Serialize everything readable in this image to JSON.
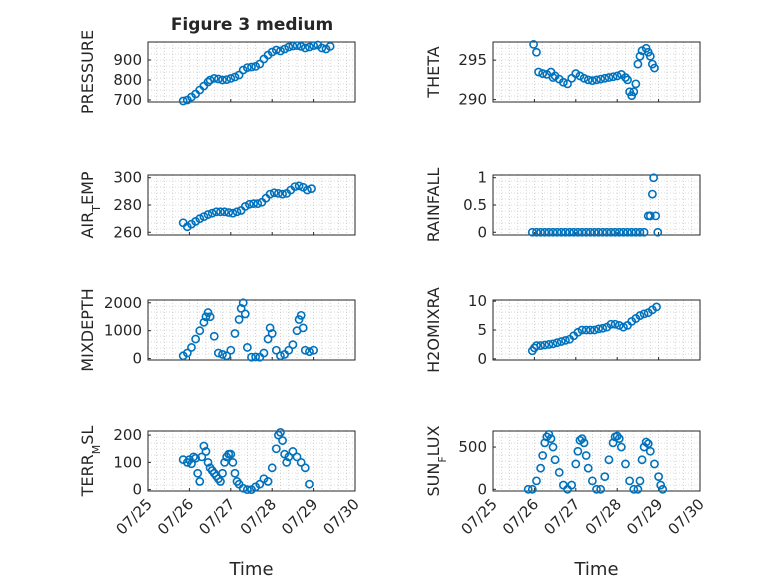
{
  "figure": {
    "title": "Figure 3 medium",
    "xlabel": "Time",
    "x_tick_labels": [
      "07/25",
      "07/26",
      "07/27",
      "07/28",
      "07/29",
      "07/30"
    ]
  },
  "colors": {
    "marker": "#0072BD",
    "axis": "#262626",
    "grid": "#b8b8b8"
  },
  "chart_data": [
    {
      "type": "scatter",
      "ylabel": "PRESSURE",
      "xlim": [
        0,
        5
      ],
      "ylim": [
        690,
        990
      ],
      "yticks": [
        700,
        800,
        900
      ],
      "grid": true,
      "points": [
        [
          0.85,
          695
        ],
        [
          0.95,
          700
        ],
        [
          1.05,
          715
        ],
        [
          1.15,
          730
        ],
        [
          1.25,
          750
        ],
        [
          1.35,
          770
        ],
        [
          1.45,
          790
        ],
        [
          1.5,
          800
        ],
        [
          1.6,
          808
        ],
        [
          1.7,
          805
        ],
        [
          1.8,
          800
        ],
        [
          1.9,
          802
        ],
        [
          2.0,
          808
        ],
        [
          2.1,
          815
        ],
        [
          2.2,
          825
        ],
        [
          2.3,
          850
        ],
        [
          2.4,
          862
        ],
        [
          2.5,
          865
        ],
        [
          2.6,
          868
        ],
        [
          2.7,
          880
        ],
        [
          2.8,
          905
        ],
        [
          2.9,
          925
        ],
        [
          3.0,
          940
        ],
        [
          3.1,
          950
        ],
        [
          3.2,
          945
        ],
        [
          3.3,
          955
        ],
        [
          3.4,
          965
        ],
        [
          3.5,
          970
        ],
        [
          3.6,
          972
        ],
        [
          3.7,
          968
        ],
        [
          3.8,
          960
        ],
        [
          3.9,
          965
        ],
        [
          4.0,
          972
        ],
        [
          4.1,
          975
        ],
        [
          4.2,
          960
        ],
        [
          4.3,
          955
        ],
        [
          4.4,
          968
        ]
      ]
    },
    {
      "type": "scatter",
      "ylabel": "THETA",
      "xlim": [
        0,
        5
      ],
      "ylim": [
        289.7,
        297.3
      ],
      "yticks": [
        290,
        295
      ],
      "grid": true,
      "points": [
        [
          0.98,
          297.0
        ],
        [
          1.05,
          296.0
        ],
        [
          1.1,
          293.5
        ],
        [
          1.2,
          293.3
        ],
        [
          1.3,
          293.2
        ],
        [
          1.4,
          293.5
        ],
        [
          1.45,
          292.8
        ],
        [
          1.5,
          293.0
        ],
        [
          1.6,
          292.6
        ],
        [
          1.7,
          292.2
        ],
        [
          1.8,
          292.0
        ],
        [
          1.9,
          292.7
        ],
        [
          2.0,
          293.3
        ],
        [
          2.1,
          293.0
        ],
        [
          2.2,
          292.7
        ],
        [
          2.3,
          292.5
        ],
        [
          2.4,
          292.4
        ],
        [
          2.5,
          292.5
        ],
        [
          2.6,
          292.6
        ],
        [
          2.7,
          292.7
        ],
        [
          2.8,
          292.8
        ],
        [
          2.9,
          292.9
        ],
        [
          3.0,
          293.0
        ],
        [
          3.1,
          293.2
        ],
        [
          3.2,
          292.8
        ],
        [
          3.25,
          292.5
        ],
        [
          3.3,
          291.0
        ],
        [
          3.35,
          290.5
        ],
        [
          3.4,
          291.0
        ],
        [
          3.45,
          292.0
        ],
        [
          3.5,
          294.5
        ],
        [
          3.55,
          295.5
        ],
        [
          3.6,
          296.2
        ],
        [
          3.7,
          296.5
        ],
        [
          3.75,
          296.0
        ],
        [
          3.8,
          295.5
        ],
        [
          3.85,
          294.5
        ],
        [
          3.9,
          294.0
        ]
      ]
    },
    {
      "type": "scatter",
      "ylabel": "AIR_TEMP",
      "xlim": [
        0,
        5
      ],
      "ylim": [
        258,
        302
      ],
      "yticks": [
        260,
        280,
        300
      ],
      "grid": true,
      "points": [
        [
          0.85,
          267
        ],
        [
          0.95,
          264
        ],
        [
          1.05,
          266
        ],
        [
          1.15,
          268
        ],
        [
          1.25,
          270
        ],
        [
          1.35,
          271.5
        ],
        [
          1.45,
          273
        ],
        [
          1.55,
          274
        ],
        [
          1.65,
          275
        ],
        [
          1.75,
          275
        ],
        [
          1.85,
          275
        ],
        [
          1.95,
          274.5
        ],
        [
          2.05,
          274
        ],
        [
          2.15,
          275
        ],
        [
          2.25,
          276
        ],
        [
          2.35,
          279
        ],
        [
          2.45,
          280.5
        ],
        [
          2.55,
          281
        ],
        [
          2.65,
          281
        ],
        [
          2.75,
          282
        ],
        [
          2.85,
          285
        ],
        [
          2.95,
          288
        ],
        [
          3.05,
          289
        ],
        [
          3.15,
          288.5
        ],
        [
          3.25,
          288
        ],
        [
          3.35,
          288.5
        ],
        [
          3.45,
          291
        ],
        [
          3.55,
          293.5
        ],
        [
          3.65,
          294
        ],
        [
          3.75,
          293
        ],
        [
          3.85,
          291
        ],
        [
          3.95,
          292
        ]
      ]
    },
    {
      "type": "scatter",
      "ylabel": "RAINFALL",
      "xlim": [
        0,
        5
      ],
      "ylim": [
        -0.05,
        1.05
      ],
      "yticks": [
        0,
        0.5,
        1
      ],
      "grid": true,
      "points": [
        [
          0.95,
          0
        ],
        [
          1.05,
          0
        ],
        [
          1.15,
          0
        ],
        [
          1.25,
          0
        ],
        [
          1.35,
          0
        ],
        [
          1.45,
          0
        ],
        [
          1.55,
          0
        ],
        [
          1.65,
          0
        ],
        [
          1.75,
          0
        ],
        [
          1.85,
          0
        ],
        [
          1.95,
          0
        ],
        [
          2.05,
          0
        ],
        [
          2.15,
          0
        ],
        [
          2.25,
          0
        ],
        [
          2.35,
          0
        ],
        [
          2.45,
          0
        ],
        [
          2.55,
          0
        ],
        [
          2.65,
          0
        ],
        [
          2.75,
          0
        ],
        [
          2.85,
          0
        ],
        [
          2.95,
          0
        ],
        [
          3.05,
          0
        ],
        [
          3.15,
          0
        ],
        [
          3.25,
          0
        ],
        [
          3.35,
          0
        ],
        [
          3.45,
          0
        ],
        [
          3.55,
          0
        ],
        [
          3.65,
          0
        ],
        [
          3.75,
          0.3
        ],
        [
          3.8,
          0.3
        ],
        [
          3.85,
          0.7
        ],
        [
          3.88,
          1.0
        ],
        [
          3.93,
          0.3
        ],
        [
          3.98,
          0
        ]
      ]
    },
    {
      "type": "scatter",
      "ylabel": "MIXDEPTH",
      "xlim": [
        0,
        5
      ],
      "ylim": [
        -50,
        2100
      ],
      "yticks": [
        0,
        1000,
        2000
      ],
      "grid": true,
      "points": [
        [
          0.85,
          100
        ],
        [
          0.95,
          200
        ],
        [
          1.05,
          400
        ],
        [
          1.15,
          700
        ],
        [
          1.25,
          1000
        ],
        [
          1.35,
          1300
        ],
        [
          1.4,
          1500
        ],
        [
          1.45,
          1650
        ],
        [
          1.5,
          1500
        ],
        [
          1.6,
          800
        ],
        [
          1.7,
          200
        ],
        [
          1.8,
          150
        ],
        [
          1.9,
          100
        ],
        [
          2.0,
          300
        ],
        [
          2.1,
          900
        ],
        [
          2.2,
          1400
        ],
        [
          2.25,
          1800
        ],
        [
          2.3,
          2000
        ],
        [
          2.35,
          1600
        ],
        [
          2.4,
          400
        ],
        [
          2.5,
          50
        ],
        [
          2.6,
          60
        ],
        [
          2.7,
          50
        ],
        [
          2.8,
          200
        ],
        [
          2.9,
          700
        ],
        [
          2.95,
          1100
        ],
        [
          3.0,
          900
        ],
        [
          3.1,
          300
        ],
        [
          3.2,
          100
        ],
        [
          3.3,
          150
        ],
        [
          3.4,
          300
        ],
        [
          3.5,
          500
        ],
        [
          3.6,
          1000
        ],
        [
          3.65,
          1400
        ],
        [
          3.7,
          1550
        ],
        [
          3.75,
          1100
        ],
        [
          3.8,
          300
        ],
        [
          3.9,
          250
        ],
        [
          4.0,
          300
        ]
      ]
    },
    {
      "type": "scatter",
      "ylabel": "H2OMIXRA",
      "xlim": [
        0,
        5
      ],
      "ylim": [
        -0.2,
        10.2
      ],
      "yticks": [
        0,
        5,
        10
      ],
      "grid": true,
      "points": [
        [
          0.95,
          1.4
        ],
        [
          1.0,
          1.9
        ],
        [
          1.05,
          2.3
        ],
        [
          1.15,
          2.3
        ],
        [
          1.25,
          2.4
        ],
        [
          1.35,
          2.5
        ],
        [
          1.45,
          2.6
        ],
        [
          1.55,
          2.8
        ],
        [
          1.65,
          3.0
        ],
        [
          1.75,
          3.2
        ],
        [
          1.85,
          3.4
        ],
        [
          1.95,
          4.0
        ],
        [
          2.05,
          4.6
        ],
        [
          2.15,
          5.0
        ],
        [
          2.25,
          5.0
        ],
        [
          2.35,
          5.0
        ],
        [
          2.45,
          5.0
        ],
        [
          2.55,
          5.2
        ],
        [
          2.65,
          5.3
        ],
        [
          2.75,
          5.5
        ],
        [
          2.85,
          6.0
        ],
        [
          2.95,
          6.0
        ],
        [
          3.05,
          5.8
        ],
        [
          3.15,
          5.5
        ],
        [
          3.25,
          5.8
        ],
        [
          3.35,
          6.5
        ],
        [
          3.45,
          7.0
        ],
        [
          3.55,
          7.5
        ],
        [
          3.65,
          7.8
        ],
        [
          3.75,
          8.0
        ],
        [
          3.85,
          8.5
        ],
        [
          3.95,
          9.0
        ]
      ]
    },
    {
      "type": "scatter",
      "ylabel": "TERR_MSL",
      "xlim": [
        0,
        5
      ],
      "ylim": [
        -5,
        215
      ],
      "yticks": [
        0,
        100,
        200
      ],
      "grid": true,
      "points": [
        [
          0.85,
          110
        ],
        [
          0.95,
          100
        ],
        [
          1.0,
          110
        ],
        [
          1.05,
          95
        ],
        [
          1.1,
          120
        ],
        [
          1.15,
          115
        ],
        [
          1.2,
          60
        ],
        [
          1.25,
          30
        ],
        [
          1.3,
          120
        ],
        [
          1.35,
          160
        ],
        [
          1.4,
          140
        ],
        [
          1.45,
          100
        ],
        [
          1.5,
          80
        ],
        [
          1.55,
          70
        ],
        [
          1.6,
          60
        ],
        [
          1.65,
          50
        ],
        [
          1.7,
          40
        ],
        [
          1.75,
          30
        ],
        [
          1.8,
          60
        ],
        [
          1.85,
          100
        ],
        [
          1.9,
          120
        ],
        [
          1.95,
          130
        ],
        [
          2.0,
          130
        ],
        [
          2.05,
          100
        ],
        [
          2.1,
          60
        ],
        [
          2.15,
          30
        ],
        [
          2.2,
          20
        ],
        [
          2.3,
          5
        ],
        [
          2.4,
          0
        ],
        [
          2.5,
          0
        ],
        [
          2.6,
          10
        ],
        [
          2.7,
          20
        ],
        [
          2.8,
          40
        ],
        [
          2.9,
          30
        ],
        [
          3.0,
          80
        ],
        [
          3.1,
          150
        ],
        [
          3.15,
          200
        ],
        [
          3.2,
          210
        ],
        [
          3.25,
          180
        ],
        [
          3.3,
          130
        ],
        [
          3.35,
          100
        ],
        [
          3.4,
          120
        ],
        [
          3.5,
          140
        ],
        [
          3.6,
          120
        ],
        [
          3.7,
          100
        ],
        [
          3.8,
          80
        ],
        [
          3.9,
          20
        ]
      ]
    },
    {
      "type": "scatter",
      "ylabel": "SUN_FLUX",
      "xlim": [
        0,
        5
      ],
      "ylim": [
        -20,
        690
      ],
      "yticks": [
        0,
        500
      ],
      "grid": true,
      "points": [
        [
          0.85,
          0
        ],
        [
          0.95,
          0
        ],
        [
          1.05,
          100
        ],
        [
          1.15,
          250
        ],
        [
          1.2,
          400
        ],
        [
          1.25,
          550
        ],
        [
          1.3,
          620
        ],
        [
          1.35,
          650
        ],
        [
          1.4,
          600
        ],
        [
          1.45,
          500
        ],
        [
          1.5,
          350
        ],
        [
          1.6,
          200
        ],
        [
          1.7,
          50
        ],
        [
          1.8,
          0
        ],
        [
          1.9,
          50
        ],
        [
          2.0,
          300
        ],
        [
          2.05,
          450
        ],
        [
          2.1,
          580
        ],
        [
          2.15,
          600
        ],
        [
          2.2,
          550
        ],
        [
          2.25,
          400
        ],
        [
          2.3,
          250
        ],
        [
          2.4,
          100
        ],
        [
          2.5,
          0
        ],
        [
          2.6,
          0
        ],
        [
          2.7,
          150
        ],
        [
          2.8,
          350
        ],
        [
          2.9,
          550
        ],
        [
          2.95,
          620
        ],
        [
          3.0,
          630
        ],
        [
          3.05,
          600
        ],
        [
          3.1,
          500
        ],
        [
          3.2,
          300
        ],
        [
          3.3,
          100
        ],
        [
          3.4,
          0
        ],
        [
          3.5,
          0
        ],
        [
          3.55,
          100
        ],
        [
          3.6,
          350
        ],
        [
          3.65,
          500
        ],
        [
          3.7,
          560
        ],
        [
          3.75,
          540
        ],
        [
          3.8,
          450
        ],
        [
          3.9,
          300
        ],
        [
          4.0,
          150
        ],
        [
          4.05,
          50
        ],
        [
          4.1,
          0
        ]
      ]
    }
  ]
}
